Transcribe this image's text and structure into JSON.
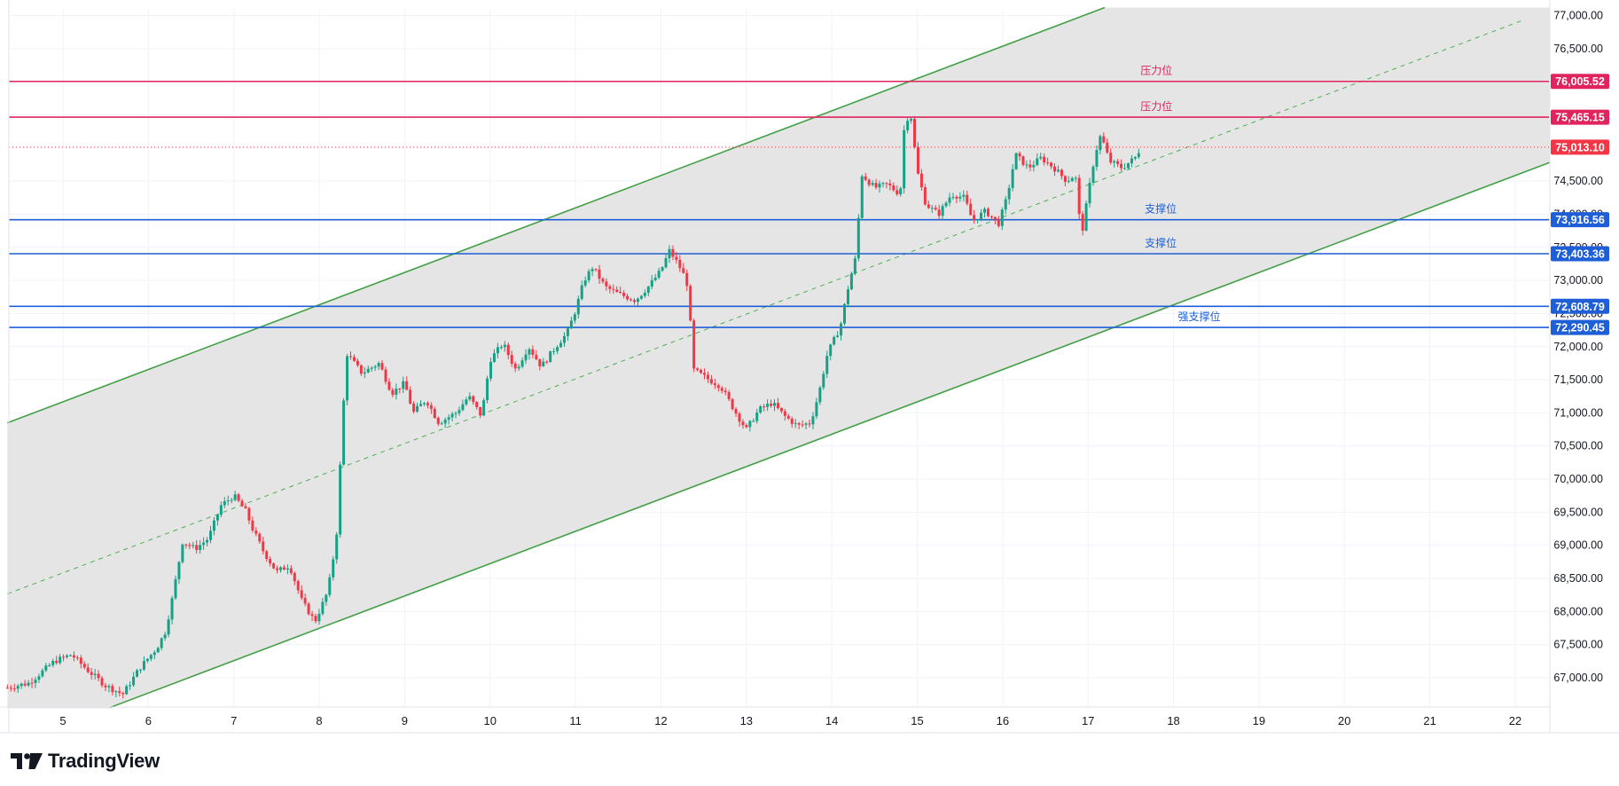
{
  "chart_data": {
    "type": "candlestick",
    "watermark_brand": "TradingView",
    "x_axis": {
      "ticks": [
        "5",
        "6",
        "7",
        "8",
        "9",
        "10",
        "11",
        "12",
        "13",
        "14",
        "15",
        "16",
        "17",
        "18",
        "19",
        "20",
        "21",
        "22"
      ]
    },
    "y_axis": {
      "side": "right",
      "range": [
        66600,
        77100
      ],
      "ticks": [
        "67,000.00",
        "67,500.00",
        "68,000.00",
        "68,500.00",
        "69,000.00",
        "69,500.00",
        "70,000.00",
        "70,500.00",
        "71,000.00",
        "71,500.00",
        "72,000.00",
        "72,500.00",
        "73,000.00",
        "73,500.00",
        "74,000.00",
        "74,500.00",
        "75,000.00",
        "75,500.00",
        "76,000.00",
        "76,500.00",
        "77,000.00"
      ]
    },
    "current_price": {
      "value": 75013.1,
      "label": "75,013.10",
      "color": "#f23645"
    },
    "levels": [
      {
        "value": 76005.52,
        "label": "76,005.52",
        "text": "压力位",
        "color": "#e0245e",
        "text_x_day": 17.8
      },
      {
        "value": 75465.15,
        "label": "75,465.15",
        "text": "压力位",
        "color": "#e0245e",
        "text_x_day": 17.8
      },
      {
        "value": 73916.56,
        "label": "73,916.56",
        "text": "支撑位",
        "color": "#1e5fd8",
        "text_x_day": 17.85
      },
      {
        "value": 73403.36,
        "label": "73,403.36",
        "text": "支撑位",
        "color": "#1e5fd8",
        "text_x_day": 17.85
      },
      {
        "value": 72608.79,
        "label": "72,608.79",
        "text": "",
        "color": "#1e5fd8",
        "text_x_day": 18.3
      },
      {
        "value": 72290.45,
        "label": "72,290.45",
        "text": "强支撑位",
        "color": "#1e5fd8",
        "text_x_day": 18.3
      }
    ],
    "channel": {
      "upper": {
        "from": [
          4.35,
          70850
        ],
        "to": [
          14.9,
          76000
        ]
      },
      "lower": {
        "from": [
          5.55,
          66550
        ],
        "to": [
          22.4,
          74780
        ]
      },
      "color": "#4caf50",
      "fill": "#e5e5e5"
    },
    "price_path": [
      [
        4.35,
        66850
      ],
      [
        4.6,
        66920
      ],
      [
        4.9,
        67250
      ],
      [
        5.1,
        67350
      ],
      [
        5.3,
        67100
      ],
      [
        5.5,
        66880
      ],
      [
        5.7,
        66750
      ],
      [
        5.9,
        67150
      ],
      [
        6.1,
        67450
      ],
      [
        6.2,
        67700
      ],
      [
        6.28,
        68200
      ],
      [
        6.4,
        69050
      ],
      [
        6.55,
        68950
      ],
      [
        6.7,
        69100
      ],
      [
        6.85,
        69600
      ],
      [
        7.0,
        69750
      ],
      [
        7.15,
        69500
      ],
      [
        7.2,
        69300
      ],
      [
        7.35,
        68900
      ],
      [
        7.5,
        68600
      ],
      [
        7.65,
        68700
      ],
      [
        7.8,
        68150
      ],
      [
        7.95,
        67850
      ],
      [
        8.1,
        68300
      ],
      [
        8.2,
        69100
      ],
      [
        8.28,
        71050
      ],
      [
        8.32,
        71900
      ],
      [
        8.5,
        71600
      ],
      [
        8.7,
        71750
      ],
      [
        8.85,
        71300
      ],
      [
        9.0,
        71450
      ],
      [
        9.1,
        71000
      ],
      [
        9.25,
        71200
      ],
      [
        9.4,
        70850
      ],
      [
        9.6,
        71000
      ],
      [
        9.75,
        71250
      ],
      [
        9.9,
        70950
      ],
      [
        10.0,
        71800
      ],
      [
        10.15,
        72050
      ],
      [
        10.3,
        71650
      ],
      [
        10.45,
        72000
      ],
      [
        10.6,
        71700
      ],
      [
        10.8,
        72050
      ],
      [
        10.9,
        72200
      ],
      [
        11.0,
        72550
      ],
      [
        11.1,
        73000
      ],
      [
        11.2,
        73200
      ],
      [
        11.35,
        72900
      ],
      [
        11.5,
        72800
      ],
      [
        11.7,
        72700
      ],
      [
        11.85,
        72900
      ],
      [
        12.0,
        73150
      ],
      [
        12.1,
        73450
      ],
      [
        12.2,
        73250
      ],
      [
        12.3,
        73000
      ],
      [
        12.33,
        72650
      ],
      [
        12.38,
        71650
      ],
      [
        12.5,
        71550
      ],
      [
        12.7,
        71400
      ],
      [
        12.9,
        70950
      ],
      [
        13.0,
        70750
      ],
      [
        13.15,
        71050
      ],
      [
        13.3,
        71150
      ],
      [
        13.45,
        70950
      ],
      [
        13.6,
        70800
      ],
      [
        13.75,
        70850
      ],
      [
        13.85,
        71300
      ],
      [
        13.95,
        71900
      ],
      [
        14.1,
        72300
      ],
      [
        14.2,
        72950
      ],
      [
        14.28,
        73350
      ],
      [
        14.35,
        74600
      ],
      [
        14.5,
        74400
      ],
      [
        14.65,
        74450
      ],
      [
        14.8,
        74300
      ],
      [
        14.85,
        75350
      ],
      [
        14.92,
        75550
      ],
      [
        15.0,
        74650
      ],
      [
        15.1,
        74150
      ],
      [
        15.25,
        74000
      ],
      [
        15.4,
        74300
      ],
      [
        15.55,
        74250
      ],
      [
        15.65,
        73900
      ],
      [
        15.8,
        74050
      ],
      [
        15.95,
        73850
      ],
      [
        16.05,
        74250
      ],
      [
        16.15,
        74900
      ],
      [
        16.3,
        74700
      ],
      [
        16.45,
        74850
      ],
      [
        16.6,
        74700
      ],
      [
        16.75,
        74500
      ],
      [
        16.85,
        74600
      ],
      [
        16.92,
        73650
      ],
      [
        17.0,
        74300
      ],
      [
        17.08,
        74900
      ],
      [
        17.15,
        75200
      ],
      [
        17.25,
        74800
      ],
      [
        17.4,
        74700
      ],
      [
        17.55,
        74850
      ],
      [
        17.62,
        75013
      ]
    ],
    "colors": {
      "up": "#26a69a",
      "down": "#ef5350",
      "up_body": "#16a085",
      "down_body": "#f23645"
    }
  }
}
